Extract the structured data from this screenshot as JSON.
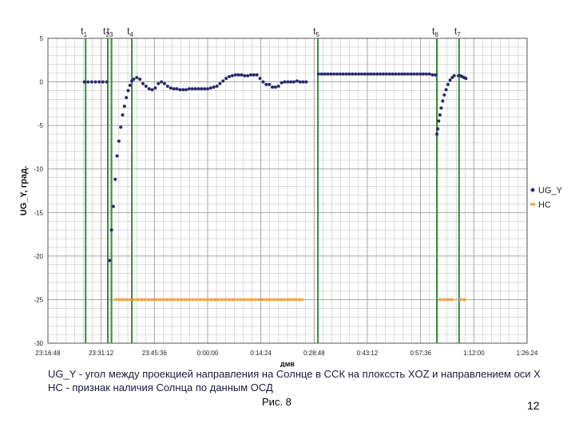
{
  "chart_data": {
    "type": "scatter",
    "title": "",
    "xlabel": "дмв",
    "ylabel": "UG_Y, град.",
    "xlim_seconds": [
      -2592,
      5184
    ],
    "ylim": [
      -30,
      5
    ],
    "yticks": [
      5,
      0,
      -5,
      -10,
      -15,
      -20,
      -25,
      -30
    ],
    "xtick_seconds": [
      -2592,
      -1728,
      -864,
      0,
      864,
      1728,
      2592,
      3456,
      4320,
      5184
    ],
    "xticks": [
      "23:16:48",
      "23:31:12",
      "23:45:36",
      "0:00:00",
      "0:14:24",
      "0:28:48",
      "0:43:12",
      "0:57:36",
      "1:12:00",
      "1:26:24"
    ],
    "grid": true,
    "legend_position": "right",
    "legend": [
      "UG_Y",
      "НС"
    ],
    "colors": {
      "ug_y": "#2b2a6b",
      "hc": "#f4a23a",
      "event_line": "#3a8a3a",
      "grid": "#b8b8b8"
    },
    "events": [
      {
        "label": "t",
        "sub": "1",
        "x": -1980
      },
      {
        "label": "t",
        "sub": "2",
        "x": -1620
      },
      {
        "label": "t",
        "sub": "3",
        "x": -1560
      },
      {
        "label": "t",
        "sub": "4",
        "x": -1230
      },
      {
        "label": "t",
        "sub": "5",
        "x": 1790
      },
      {
        "label": "t",
        "sub": "6",
        "x": 3720
      },
      {
        "label": "t",
        "sub": "7",
        "x": 4080
      }
    ],
    "series": [
      {
        "name": "UG_Y",
        "x": [
          -2000,
          -1940,
          -1880,
          -1820,
          -1760,
          -1700,
          -1640,
          -1590,
          -1560,
          -1530,
          -1500,
          -1470,
          -1440,
          -1410,
          -1380,
          -1350,
          -1320,
          -1290,
          -1260,
          -1230,
          -1200,
          -1150,
          -1100,
          -1050,
          -1000,
          -950,
          -900,
          -850,
          -800,
          -750,
          -700,
          -650,
          -600,
          -550,
          -500,
          -450,
          -400,
          -350,
          -300,
          -250,
          -200,
          -150,
          -100,
          -50,
          0,
          50,
          100,
          150,
          200,
          250,
          300,
          350,
          400,
          450,
          500,
          550,
          600,
          650,
          700,
          750,
          800,
          850,
          900,
          950,
          1000,
          1050,
          1100,
          1150,
          1200,
          1250,
          1300,
          1350,
          1400,
          1450,
          1500,
          1550,
          1600,
          1800,
          1850,
          1900,
          1950,
          2000,
          2050,
          2100,
          2150,
          2200,
          2250,
          2300,
          2350,
          2400,
          2450,
          2500,
          2550,
          2600,
          2650,
          2700,
          2750,
          2800,
          2850,
          2900,
          2950,
          3000,
          3050,
          3100,
          3150,
          3200,
          3250,
          3300,
          3350,
          3400,
          3450,
          3500,
          3550,
          3600,
          3650,
          3700,
          3720,
          3735,
          3750,
          3770,
          3790,
          3815,
          3840,
          3870,
          3900,
          3935,
          3970,
          4000,
          4070,
          4100,
          4130,
          4160,
          4190
        ],
        "values": [
          0,
          0,
          0,
          0,
          0,
          0,
          0,
          -20.5,
          -17,
          -14.3,
          -11.2,
          -8.5,
          -6.8,
          -5.2,
          -3.8,
          -2.8,
          -1.8,
          -1.0,
          -0.4,
          0.1,
          0.3,
          0.5,
          0.3,
          -0.2,
          -0.5,
          -0.8,
          -0.9,
          -0.7,
          -0.2,
          0.0,
          -0.2,
          -0.5,
          -0.7,
          -0.8,
          -0.8,
          -0.9,
          -0.9,
          -0.9,
          -0.8,
          -0.8,
          -0.8,
          -0.8,
          -0.8,
          -0.8,
          -0.8,
          -0.7,
          -0.6,
          -0.5,
          -0.2,
          0.1,
          0.4,
          0.6,
          0.7,
          0.8,
          0.8,
          0.8,
          0.7,
          0.7,
          0.8,
          0.8,
          0.8,
          0.4,
          0.0,
          -0.3,
          -0.3,
          -0.6,
          -0.6,
          -0.5,
          -0.1,
          0.0,
          0.0,
          0.0,
          0.0,
          0.1,
          0.0,
          0.0,
          0.0,
          0.9,
          0.9,
          0.9,
          0.9,
          0.9,
          0.9,
          0.9,
          0.9,
          0.9,
          0.9,
          0.9,
          0.9,
          0.9,
          0.9,
          0.9,
          0.9,
          0.9,
          0.9,
          0.9,
          0.9,
          0.9,
          0.9,
          0.9,
          0.9,
          0.9,
          0.9,
          0.9,
          0.9,
          0.9,
          0.9,
          0.9,
          0.9,
          0.9,
          0.9,
          0.9,
          0.9,
          0.9,
          0.8,
          0.8,
          -6.0,
          -5.4,
          -4.5,
          -3.8,
          -3.0,
          -2.2,
          -1.5,
          -0.9,
          -0.3,
          0.2,
          0.5,
          0.7,
          0.7,
          0.7,
          0.6,
          0.5,
          0.4
        ]
      },
      {
        "name": "НС",
        "segments": [
          {
            "x_from": -1520,
            "x_to": 1550,
            "value": -25
          },
          {
            "x_from": 3750,
            "x_to": 4000,
            "value": -25
          },
          {
            "x_from": 4080,
            "x_to": 4200,
            "value": -25
          }
        ]
      }
    ]
  },
  "captions": {
    "line1": "UG_Y - угол между проекцией направления на Солнце в ССК на плоксcть XOZ и направлением оси  X",
    "line2": "НС - признак наличия Солнца по данным ОСД"
  },
  "figure_label": "Рис. 8",
  "page_number": "12"
}
